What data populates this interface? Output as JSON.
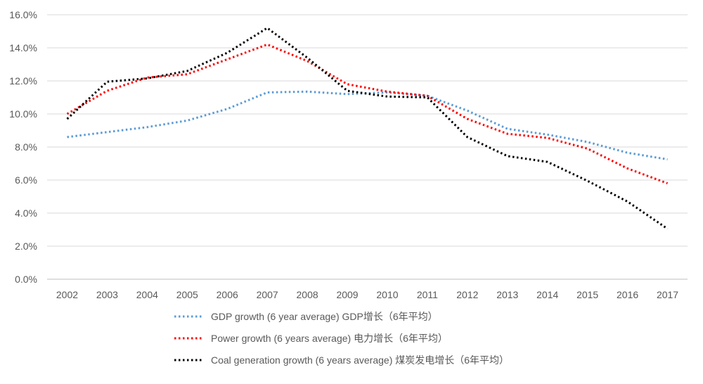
{
  "chart_data": {
    "type": "line",
    "title": "",
    "xlabel": "",
    "ylabel": "",
    "x": [
      "2002",
      "2003",
      "2004",
      "2005",
      "2006",
      "2007",
      "2008",
      "2009",
      "2010",
      "2011",
      "2012",
      "2013",
      "2014",
      "2015",
      "2016",
      "2017"
    ],
    "ylim": [
      0,
      16
    ],
    "ytick_step": 2,
    "ytick_labels": [
      "0.0%",
      "2.0%",
      "4.0%",
      "6.0%",
      "8.0%",
      "10.0%",
      "12.0%",
      "14.0%",
      "16.0%"
    ],
    "grid": "horizontal",
    "legend_position": "bottom",
    "series": [
      {
        "name": "GDP growth (6 year average) GDP增长（6年平均）",
        "color": "#5B9BD5",
        "values": [
          8.6,
          8.9,
          9.2,
          9.6,
          10.3,
          11.3,
          11.35,
          11.2,
          11.3,
          11.1,
          10.2,
          9.1,
          8.75,
          8.3,
          7.65,
          7.25
        ]
      },
      {
        "name": "Power growth (6 years average) 电力增长（6年平均）",
        "color": "#FF0000",
        "values": [
          10.0,
          11.4,
          12.2,
          12.4,
          13.3,
          14.2,
          13.2,
          11.8,
          11.35,
          11.1,
          9.7,
          8.8,
          8.55,
          7.9,
          6.7,
          5.8
        ]
      },
      {
        "name": "Coal generation growth (6 years average) 煤炭发电增长（6年平均）",
        "color": "#000000",
        "values": [
          9.7,
          11.95,
          12.15,
          12.6,
          13.7,
          15.2,
          13.4,
          11.4,
          11.05,
          11.0,
          8.6,
          7.45,
          7.1,
          5.95,
          4.7,
          3.05
        ]
      }
    ]
  }
}
